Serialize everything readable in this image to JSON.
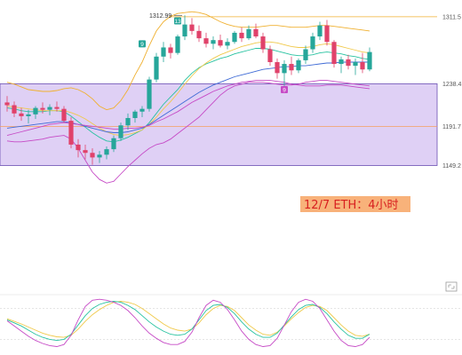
{
  "caption": "12/7 ETH：4小时",
  "colors": {
    "up": "#26a69a",
    "down": "#e0426a",
    "zone_fill": "#d9c8f3",
    "zone_border": "#6a4fb3",
    "ma_green": "#27c2a0",
    "ma_yellow": "#f0c94a",
    "ma_blue": "#3f6bd6",
    "ma_purple": "#c64ac6",
    "band_orange": "#f0b030",
    "caption_bg": "#f8b27a",
    "caption_text": "#d82020",
    "osc_yellow": "#f0c94a",
    "osc_teal": "#27c2a0",
    "osc_purple": "#c64ac6"
  },
  "chart_data": {
    "type": "candlestick",
    "price_levels": [
      {
        "label": "1311.5",
        "value": 1311.5
      },
      {
        "label": "1238.4",
        "value": 1238.4
      },
      {
        "label": "1191.7",
        "value": 1191.7
      },
      {
        "label": "1149.2",
        "value": 1149.2
      }
    ],
    "high_marker": {
      "label": "1312.99",
      "value": 1312.99
    },
    "zone": {
      "top": 1238.4,
      "bottom": 1149.2
    },
    "markers": [
      {
        "label": "9",
        "value": 1282
      },
      {
        "label": "13",
        "value": 1307
      },
      {
        "label": "9",
        "value": 1232
      }
    ],
    "candles": [
      [
        1218,
        1225,
        1208,
        1215
      ],
      [
        1215,
        1219,
        1202,
        1206
      ],
      [
        1206,
        1212,
        1198,
        1203
      ],
      [
        1203,
        1210,
        1195,
        1205
      ],
      [
        1205,
        1214,
        1200,
        1212
      ],
      [
        1212,
        1218,
        1206,
        1210
      ],
      [
        1210,
        1216,
        1204,
        1213
      ],
      [
        1213,
        1219,
        1208,
        1211
      ],
      [
        1211,
        1214,
        1196,
        1198
      ],
      [
        1198,
        1202,
        1168,
        1172
      ],
      [
        1172,
        1178,
        1158,
        1166
      ],
      [
        1166,
        1172,
        1156,
        1163
      ],
      [
        1163,
        1168,
        1150,
        1158
      ],
      [
        1158,
        1165,
        1152,
        1161
      ],
      [
        1161,
        1170,
        1156,
        1167
      ],
      [
        1167,
        1182,
        1164,
        1179
      ],
      [
        1179,
        1196,
        1176,
        1193
      ],
      [
        1193,
        1206,
        1188,
        1201
      ],
      [
        1201,
        1210,
        1196,
        1208
      ],
      [
        1208,
        1214,
        1202,
        1211
      ],
      [
        1211,
        1246,
        1208,
        1243
      ],
      [
        1243,
        1272,
        1240,
        1268
      ],
      [
        1268,
        1284,
        1262,
        1278
      ],
      [
        1278,
        1282,
        1266,
        1272
      ],
      [
        1272,
        1292,
        1270,
        1290
      ],
      [
        1290,
        1312.99,
        1286,
        1303
      ],
      [
        1303,
        1310,
        1292,
        1296
      ],
      [
        1296,
        1302,
        1284,
        1288
      ],
      [
        1288,
        1294,
        1278,
        1282
      ],
      [
        1282,
        1290,
        1276,
        1286
      ],
      [
        1286,
        1292,
        1278,
        1280
      ],
      [
        1280,
        1288,
        1276,
        1284
      ],
      [
        1284,
        1296,
        1282,
        1294
      ],
      [
        1294,
        1300,
        1284,
        1288
      ],
      [
        1288,
        1302,
        1286,
        1298
      ],
      [
        1298,
        1304,
        1288,
        1290
      ],
      [
        1290,
        1294,
        1272,
        1276
      ],
      [
        1276,
        1280,
        1258,
        1262
      ],
      [
        1262,
        1266,
        1244,
        1250
      ],
      [
        1250,
        1264,
        1236,
        1260
      ],
      [
        1260,
        1268,
        1248,
        1253
      ],
      [
        1253,
        1266,
        1250,
        1264
      ],
      [
        1264,
        1280,
        1260,
        1276
      ],
      [
        1276,
        1294,
        1272,
        1290
      ],
      [
        1290,
        1306,
        1286,
        1302
      ],
      [
        1302,
        1308,
        1280,
        1284
      ],
      [
        1284,
        1286,
        1256,
        1260
      ],
      [
        1260,
        1268,
        1250,
        1265
      ],
      [
        1265,
        1270,
        1254,
        1258
      ],
      [
        1258,
        1266,
        1248,
        1262
      ],
      [
        1262,
        1272,
        1250,
        1254
      ],
      [
        1254,
        1278,
        1252,
        1273
      ]
    ],
    "ma_lines": [
      {
        "color_key": "ma_green",
        "values": [
          1212,
          1211,
          1209,
          1208,
          1208,
          1208,
          1209,
          1209,
          1208,
          1203,
          1197,
          1191,
          1185,
          1180,
          1176,
          1175,
          1177,
          1180,
          1184,
          1188,
          1196,
          1206,
          1216,
          1224,
          1232,
          1242,
          1250,
          1256,
          1260,
          1263,
          1266,
          1268,
          1271,
          1273,
          1275,
          1277,
          1277,
          1276,
          1274,
          1272,
          1270,
          1269,
          1269,
          1270,
          1272,
          1273,
          1272,
          1271,
          1269,
          1268,
          1266,
          1265
        ]
      },
      {
        "color_key": "ma_yellow",
        "values": [
          1214,
          1213,
          1212,
          1211,
          1210,
          1209,
          1209,
          1209,
          1209,
          1207,
          1204,
          1200,
          1195,
          1190,
          1186,
          1183,
          1182,
          1183,
          1185,
          1188,
          1194,
          1202,
          1211,
          1219,
          1228,
          1238,
          1247,
          1255,
          1261,
          1266,
          1270,
          1273,
          1276,
          1279,
          1281,
          1283,
          1284,
          1284,
          1283,
          1281,
          1279,
          1278,
          1278,
          1279,
          1281,
          1282,
          1281,
          1279,
          1277,
          1275,
          1273,
          1272
        ]
      },
      {
        "color_key": "ma_blue",
        "values": [
          1190,
          1191,
          1192,
          1193,
          1194,
          1195,
          1196,
          1197,
          1197,
          1196,
          1194,
          1192,
          1190,
          1188,
          1186,
          1185,
          1185,
          1186,
          1188,
          1190,
          1194,
          1199,
          1204,
          1209,
          1214,
          1219,
          1224,
          1229,
          1233,
          1237,
          1240,
          1243,
          1246,
          1248,
          1250,
          1252,
          1254,
          1255,
          1256,
          1257,
          1257,
          1258,
          1258,
          1259,
          1260,
          1261,
          1261,
          1262,
          1262,
          1262,
          1262,
          1262
        ]
      },
      {
        "color_key": "ma_purple",
        "values": [
          1182,
          1184,
          1186,
          1188,
          1190,
          1192,
          1194,
          1195,
          1196,
          1195,
          1194,
          1193,
          1192,
          1191,
          1190,
          1189,
          1189,
          1190,
          1190,
          1191,
          1193,
          1197,
          1200,
          1204,
          1208,
          1213,
          1218,
          1222,
          1226,
          1230,
          1233,
          1236,
          1238,
          1240,
          1241,
          1242,
          1242,
          1242,
          1241,
          1240,
          1238,
          1237,
          1236,
          1236,
          1236,
          1237,
          1237,
          1237,
          1236,
          1235,
          1234,
          1233
        ]
      }
    ],
    "bands": {
      "upper": [
        1240,
        1238,
        1235,
        1232,
        1231,
        1230,
        1230,
        1231,
        1233,
        1234,
        1232,
        1228,
        1222,
        1214,
        1210,
        1212,
        1220,
        1232,
        1248,
        1262,
        1280,
        1296,
        1306,
        1312,
        1315,
        1316,
        1317,
        1316,
        1314,
        1310,
        1306,
        1303,
        1301,
        1300,
        1300,
        1300,
        1301,
        1302,
        1302,
        1301,
        1300,
        1300,
        1300,
        1301,
        1302,
        1302,
        1301,
        1300,
        1299,
        1298,
        1297,
        1296
      ],
      "lower": [
        1176,
        1175,
        1175,
        1176,
        1177,
        1178,
        1180,
        1181,
        1182,
        1178,
        1168,
        1155,
        1142,
        1134,
        1130,
        1132,
        1140,
        1148,
        1155,
        1162,
        1168,
        1172,
        1174,
        1178,
        1184,
        1190,
        1196,
        1202,
        1210,
        1218,
        1226,
        1232,
        1236,
        1238,
        1240,
        1240,
        1240,
        1239,
        1238,
        1237,
        1237,
        1238,
        1240,
        1241,
        1242,
        1242,
        1241,
        1240,
        1239,
        1238,
        1237,
        1236
      ]
    },
    "oscillator": {
      "yellow": [
        60,
        55,
        50,
        44,
        38,
        32,
        28,
        25,
        24,
        28,
        40,
        55,
        68,
        78,
        86,
        92,
        94,
        92,
        88,
        80,
        70,
        60,
        50,
        42,
        38,
        36,
        40,
        52,
        68,
        80,
        86,
        84,
        76,
        62,
        48,
        38,
        30,
        28,
        34,
        46,
        60,
        72,
        82,
        86,
        84,
        76,
        62,
        48,
        36,
        28,
        26,
        30
      ],
      "teal": [
        58,
        52,
        46,
        38,
        30,
        24,
        20,
        18,
        20,
        30,
        48,
        66,
        80,
        88,
        92,
        94,
        92,
        86,
        78,
        66,
        54,
        44,
        36,
        30,
        28,
        30,
        40,
        58,
        76,
        86,
        88,
        82,
        70,
        54,
        40,
        30,
        24,
        24,
        32,
        48,
        64,
        78,
        86,
        88,
        82,
        70,
        54,
        40,
        28,
        22,
        22,
        30
      ],
      "purple": [
        56,
        46,
        36,
        26,
        18,
        12,
        8,
        6,
        10,
        28,
        58,
        84,
        96,
        98,
        96,
        92,
        86,
        76,
        62,
        46,
        32,
        22,
        14,
        10,
        10,
        16,
        34,
        62,
        86,
        96,
        92,
        78,
        58,
        36,
        20,
        10,
        6,
        8,
        22,
        48,
        74,
        92,
        98,
        94,
        80,
        58,
        36,
        18,
        8,
        6,
        10,
        24
      ]
    }
  }
}
